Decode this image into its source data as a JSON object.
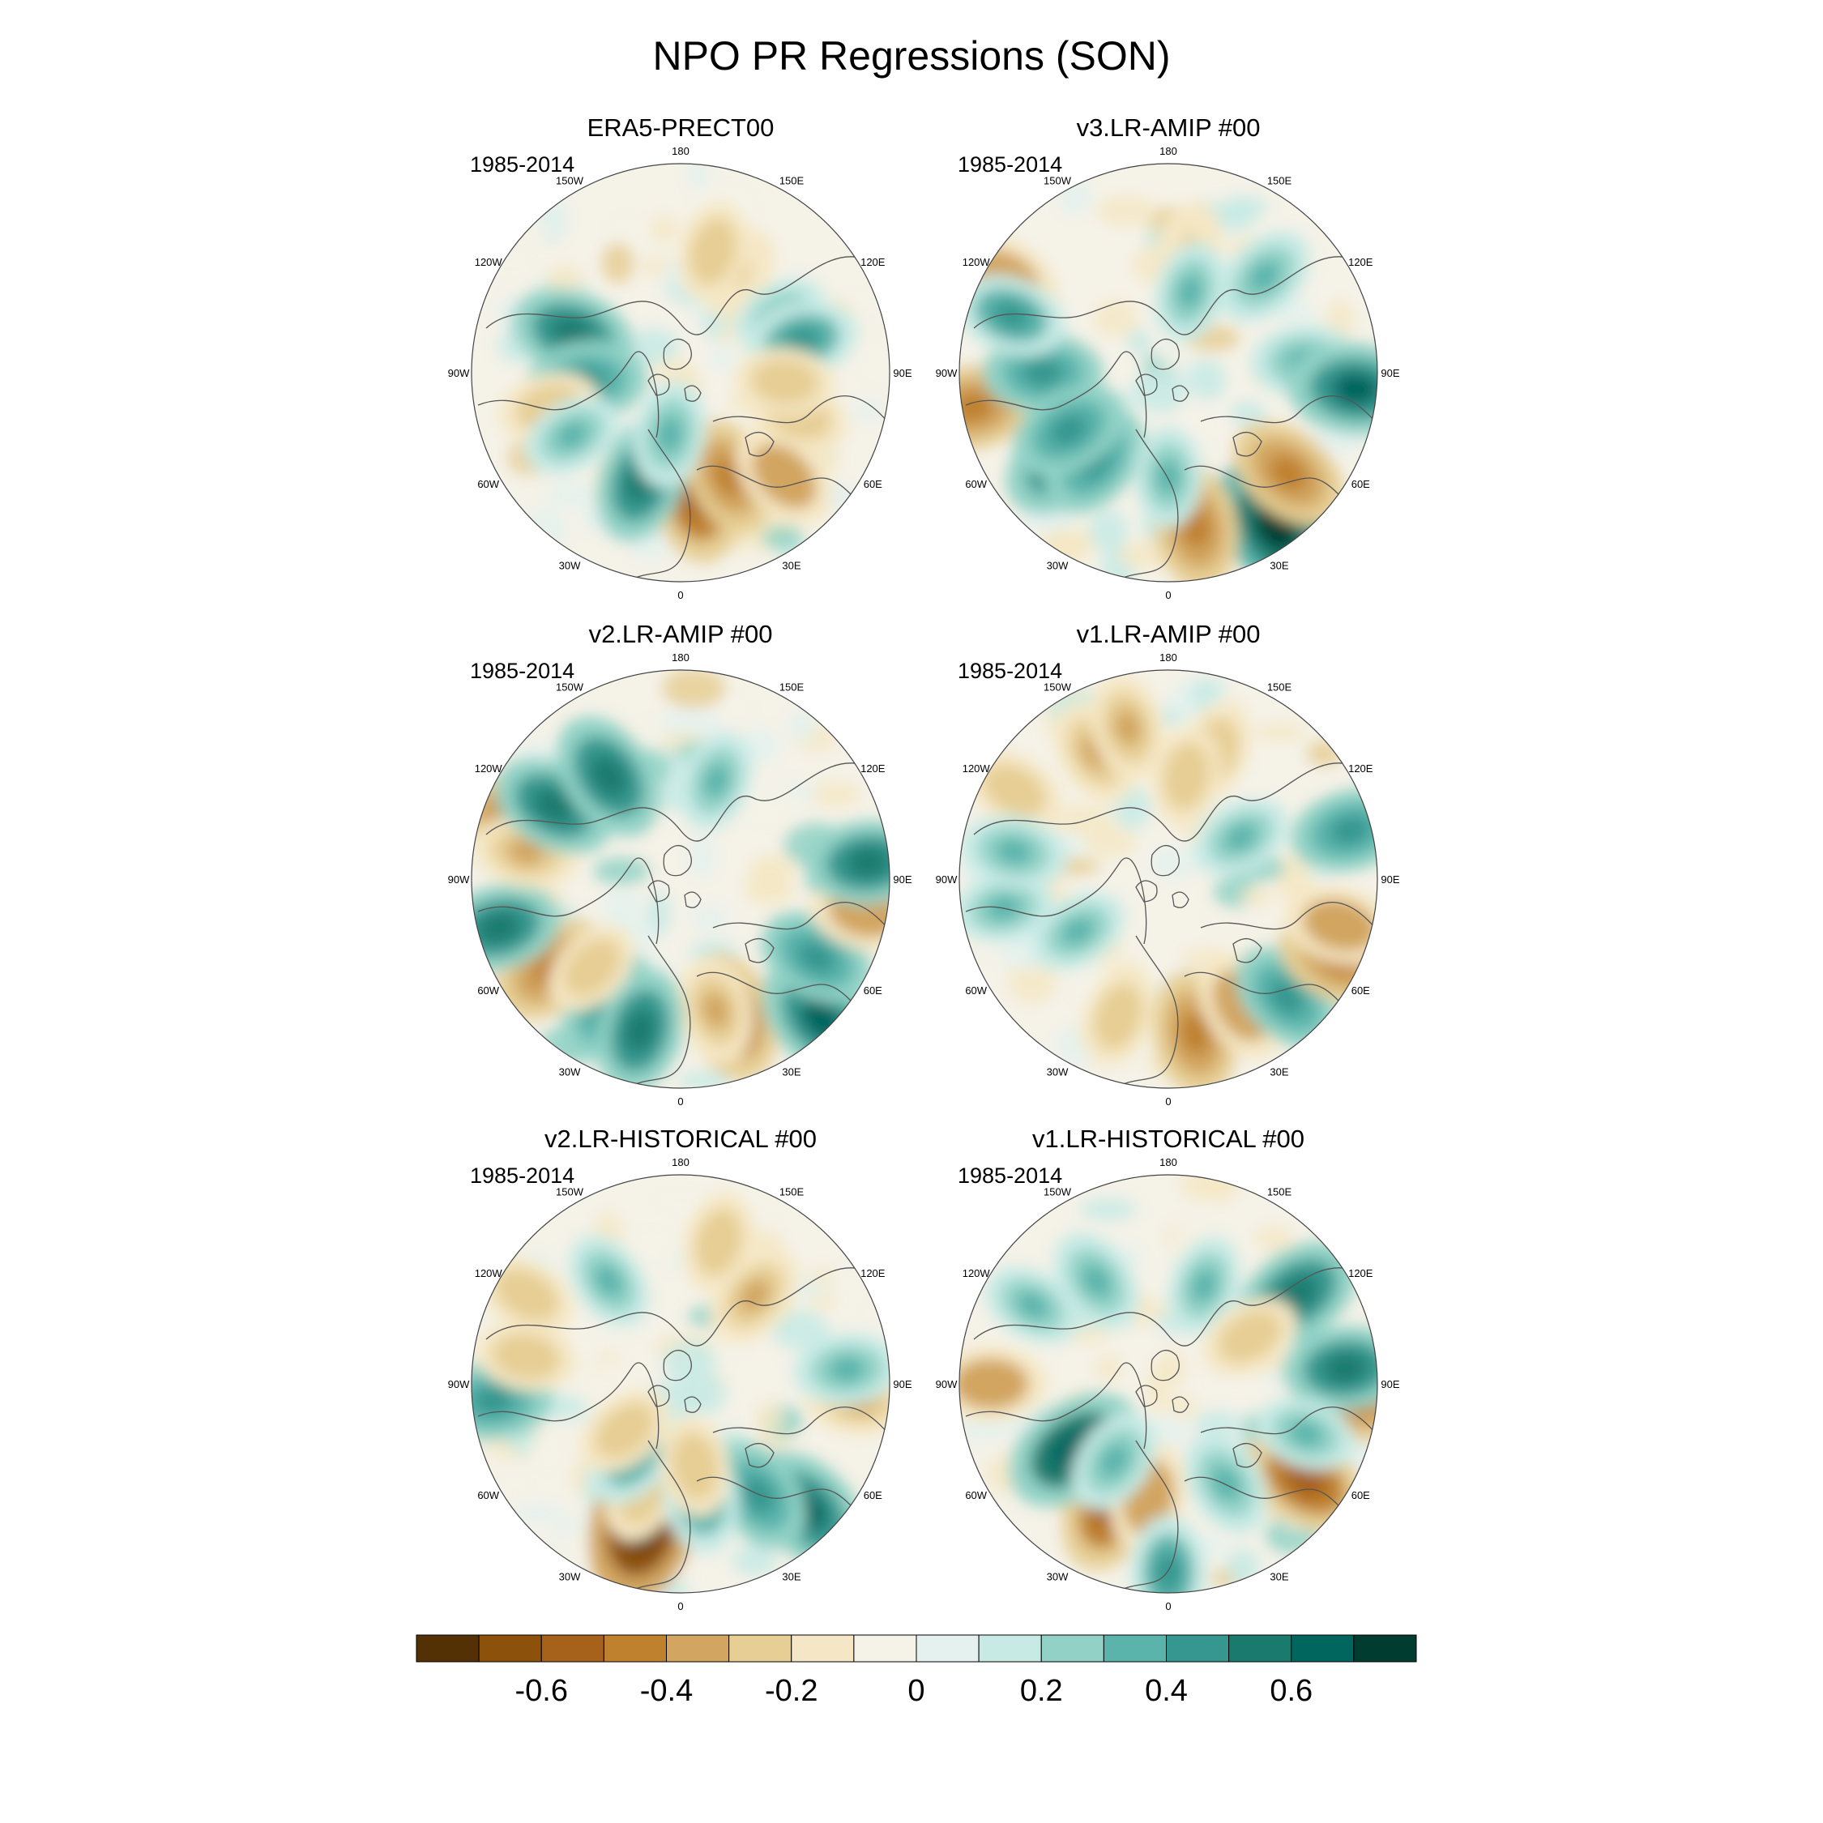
{
  "figure": {
    "title": "NPO PR Regressions (SON)"
  },
  "panels": [
    {
      "title": "ERA5-PRECT00",
      "period": "1985-2014",
      "blobs": [
        [
          172,
          -0.55,
          0.6
        ],
        [
          155,
          -0.45,
          0.55
        ],
        [
          135,
          -0.4,
          0.7
        ],
        [
          205,
          -0.3,
          0.55
        ],
        [
          200,
          0.5,
          0.55
        ],
        [
          190,
          0.35,
          0.3
        ],
        [
          290,
          0.5,
          0.55
        ],
        [
          265,
          0.45,
          0.45
        ],
        [
          30,
          -0.25,
          0.55
        ],
        [
          15,
          -0.3,
          0.6
        ],
        [
          255,
          -0.3,
          0.65
        ],
        [
          110,
          -0.3,
          0.6
        ],
        [
          240,
          0.3,
          0.6
        ],
        [
          60,
          0.25,
          0.55
        ],
        [
          75,
          0.4,
          0.6
        ],
        [
          95,
          -0.3,
          0.5
        ]
      ]
    },
    {
      "title": "v3.LR-AMIP  #00",
      "period": "1985-2014",
      "blobs": [
        [
          145,
          0.7,
          0.9
        ],
        [
          230,
          0.55,
          0.65
        ],
        [
          220,
          0.45,
          0.55
        ],
        [
          170,
          -0.5,
          0.75
        ],
        [
          130,
          -0.5,
          0.75
        ],
        [
          260,
          -0.5,
          0.95
        ],
        [
          270,
          0.45,
          0.6
        ],
        [
          300,
          -0.4,
          0.9
        ],
        [
          290,
          0.4,
          0.8
        ],
        [
          10,
          -0.25,
          0.6
        ],
        [
          45,
          0.35,
          0.65
        ],
        [
          85,
          0.35,
          0.65
        ],
        [
          95,
          0.6,
          0.9
        ],
        [
          180,
          0.3,
          0.5
        ],
        [
          240,
          0.45,
          0.55
        ],
        [
          15,
          0.3,
          0.4
        ]
      ]
    },
    {
      "title": "v2.LR-AMIP  #00",
      "period": "1985-2014",
      "blobs": [
        [
          160,
          -0.55,
          0.7
        ],
        [
          165,
          -0.35,
          0.65
        ],
        [
          210,
          0.45,
          0.7
        ],
        [
          195,
          0.5,
          0.75
        ],
        [
          135,
          0.6,
          0.95
        ],
        [
          120,
          0.45,
          0.75
        ],
        [
          235,
          -0.5,
          0.75
        ],
        [
          225,
          -0.3,
          0.6
        ],
        [
          255,
          0.5,
          0.9
        ],
        [
          290,
          -0.45,
          0.85
        ],
        [
          280,
          -0.35,
          0.75
        ],
        [
          300,
          0.5,
          0.7
        ],
        [
          325,
          0.55,
          0.6
        ],
        [
          100,
          -0.4,
          0.9
        ],
        [
          85,
          0.5,
          0.9
        ],
        [
          20,
          0.3,
          0.5
        ]
      ]
    },
    {
      "title": "v1.LR-AMIP  #00",
      "period": "1985-2014",
      "blobs": [
        [
          170,
          -0.5,
          0.75
        ],
        [
          150,
          -0.4,
          0.7
        ],
        [
          200,
          -0.3,
          0.7
        ],
        [
          135,
          0.45,
          0.8
        ],
        [
          115,
          -0.5,
          0.9
        ],
        [
          105,
          -0.4,
          0.85
        ],
        [
          75,
          0.45,
          0.9
        ],
        [
          260,
          0.3,
          0.8
        ],
        [
          330,
          -0.35,
          0.7
        ],
        [
          345,
          -0.35,
          0.75
        ],
        [
          20,
          -0.3,
          0.65
        ],
        [
          10,
          -0.3,
          0.5
        ],
        [
          300,
          -0.3,
          0.85
        ],
        [
          280,
          0.35,
          0.75
        ],
        [
          240,
          0.3,
          0.5
        ],
        [
          60,
          0.3,
          0.4
        ]
      ]
    },
    {
      "title": "v2.LR-HISTORICAL  #00",
      "period": "1985-2014",
      "blobs": [
        [
          195,
          -0.75,
          0.7
        ],
        [
          200,
          -0.3,
          0.55
        ],
        [
          135,
          0.6,
          0.85
        ],
        [
          145,
          0.45,
          0.65
        ],
        [
          170,
          0.4,
          0.55
        ],
        [
          215,
          0.4,
          0.4
        ],
        [
          230,
          -0.3,
          0.35
        ],
        [
          265,
          0.45,
          0.9
        ],
        [
          280,
          -0.3,
          0.75
        ],
        [
          300,
          -0.3,
          0.85
        ],
        [
          95,
          -0.35,
          0.85
        ],
        [
          85,
          0.35,
          0.8
        ],
        [
          40,
          -0.35,
          0.55
        ],
        [
          15,
          -0.3,
          0.7
        ],
        [
          325,
          0.3,
          0.6
        ],
        [
          170,
          -0.3,
          0.4
        ]
      ]
    },
    {
      "title": "v1.LR-HISTORICAL  #00",
      "period": "1985-2014",
      "blobs": [
        [
          205,
          -0.55,
          0.65
        ],
        [
          190,
          -0.4,
          0.55
        ],
        [
          235,
          0.65,
          0.55
        ],
        [
          215,
          0.35,
          0.45
        ],
        [
          125,
          -0.55,
          0.8
        ],
        [
          150,
          0.35,
          0.55
        ],
        [
          95,
          -0.5,
          0.9
        ],
        [
          85,
          0.5,
          0.85
        ],
        [
          55,
          0.55,
          0.75
        ],
        [
          270,
          -0.4,
          0.85
        ],
        [
          300,
          0.3,
          0.75
        ],
        [
          325,
          0.35,
          0.6
        ],
        [
          20,
          0.3,
          0.5
        ],
        [
          60,
          -0.3,
          0.45
        ],
        [
          180,
          0.4,
          0.9
        ],
        [
          110,
          0.3,
          0.7
        ]
      ]
    }
  ],
  "lon_labels": [
    {
      "text": "180",
      "deg": 0
    },
    {
      "text": "150E",
      "deg": 30
    },
    {
      "text": "120E",
      "deg": 60
    },
    {
      "text": "90E",
      "deg": 90
    },
    {
      "text": "60E",
      "deg": 120
    },
    {
      "text": "30E",
      "deg": 150
    },
    {
      "text": "0",
      "deg": 180
    },
    {
      "text": "30W",
      "deg": 210
    },
    {
      "text": "60W",
      "deg": 240
    },
    {
      "text": "90W",
      "deg": 270
    },
    {
      "text": "120W",
      "deg": 300
    },
    {
      "text": "150W",
      "deg": 330
    }
  ],
  "colorbar": {
    "levels": [
      -0.7,
      -0.6,
      -0.5,
      -0.4,
      -0.3,
      -0.2,
      -0.1,
      0,
      0.1,
      0.2,
      0.3,
      0.4,
      0.5,
      0.6,
      0.7
    ],
    "colors": [
      "#543005",
      "#8c510a",
      "#a6611a",
      "#bf812d",
      "#d2a560",
      "#e6ce94",
      "#f5e7c5",
      "#f5f2e8",
      "#e4f1ee",
      "#c7eae5",
      "#92d2c6",
      "#5ab4ac",
      "#35978f",
      "#1a7a6e",
      "#01665e",
      "#003c30"
    ],
    "tick_labels": [
      {
        "text": "-0.6",
        "value": -0.6
      },
      {
        "text": "-0.4",
        "value": -0.4
      },
      {
        "text": "-0.2",
        "value": -0.2
      },
      {
        "text": "0",
        "value": 0
      },
      {
        "text": "0.2",
        "value": 0.2
      },
      {
        "text": "0.4",
        "value": 0.4
      },
      {
        "text": "0.6",
        "value": 0.6
      }
    ]
  },
  "style": {
    "coast_color": "#555555",
    "ring_color": "#444444"
  }
}
